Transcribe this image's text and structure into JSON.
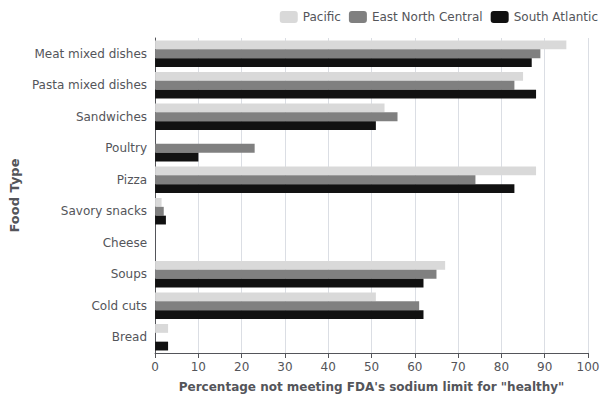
{
  "chart_data": {
    "type": "bar",
    "orientation": "horizontal",
    "categories": [
      "Bread",
      "Cold cuts",
      "Soups",
      "Cheese",
      "Savory snacks",
      "Pizza",
      "Poultry",
      "Sandwiches",
      "Pasta mixed dishes",
      "Meat mixed dishes"
    ],
    "series": [
      {
        "name": "Pacific",
        "color": "#d9d9d9",
        "values": [
          3,
          51,
          67,
          0,
          1.5,
          88,
          0,
          53,
          85,
          95
        ]
      },
      {
        "name": "East North Central",
        "color": "#808080",
        "values": [
          0,
          61,
          65,
          0,
          2,
          74,
          23,
          56,
          83,
          89
        ]
      },
      {
        "name": "South Atlantic",
        "color": "#111111",
        "values": [
          3,
          62,
          62,
          0,
          2.5,
          83,
          10,
          51,
          88,
          87
        ]
      }
    ],
    "xlabel": "Percentage not meeting FDA's sodium limit for \"healthy\"",
    "ylabel": "Food Type",
    "xlim": [
      0,
      100
    ],
    "xticks": [
      0,
      10,
      20,
      30,
      40,
      50,
      60,
      70,
      80,
      90,
      100
    ],
    "grid": true,
    "legend": "upper right"
  }
}
